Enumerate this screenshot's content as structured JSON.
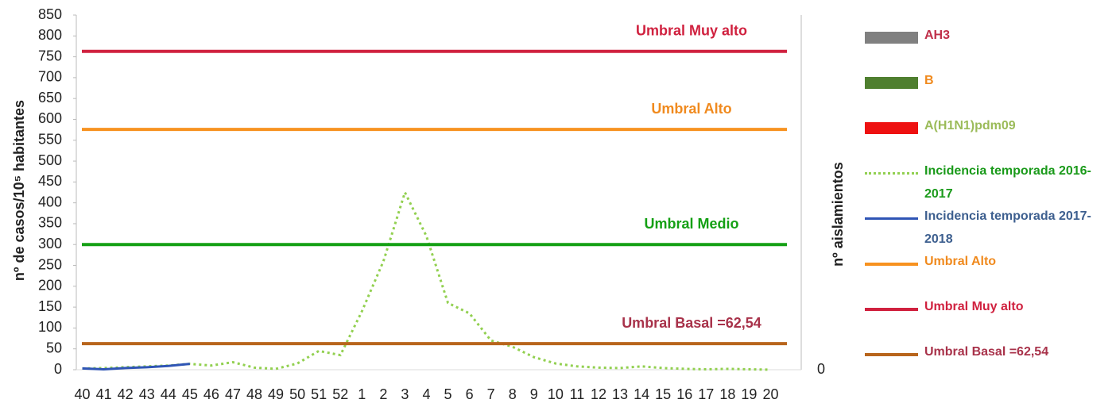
{
  "chart_data": {
    "type": "line",
    "y_label": "nº de casos/10⁵ habitantes",
    "y2_label": "nº aislamientos",
    "categories": [
      40,
      41,
      42,
      43,
      44,
      45,
      46,
      47,
      48,
      49,
      50,
      51,
      52,
      1,
      2,
      3,
      4,
      5,
      6,
      7,
      8,
      9,
      10,
      11,
      12,
      13,
      14,
      15,
      16,
      17,
      18,
      19,
      20
    ],
    "ylim": [
      0,
      850
    ],
    "yticks": [
      0,
      50,
      100,
      150,
      200,
      250,
      300,
      350,
      400,
      450,
      500,
      550,
      600,
      650,
      700,
      750,
      800,
      850
    ],
    "y2ticks": [
      0
    ],
    "series": [
      {
        "name": "AH3",
        "type": "bar",
        "axis": "y2",
        "color": "#808080",
        "label_color": "#c0304a"
      },
      {
        "name": "B",
        "type": "bar",
        "axis": "y2",
        "color": "#4f7f2f",
        "label_color": "#f08a1e"
      },
      {
        "name": "A(H1N1)pdm09",
        "type": "bar",
        "axis": "y2",
        "color": "#ee1111",
        "label_color": "#9bbb59"
      },
      {
        "name": "Incidencia temporada 2016-2017",
        "type": "line",
        "dash": "dotted",
        "color": "#92d050",
        "label_color": "#1a9a1a",
        "values": [
          3,
          4,
          6,
          8,
          10,
          14,
          10,
          18,
          5,
          2,
          15,
          45,
          35,
          140,
          260,
          425,
          320,
          160,
          135,
          70,
          55,
          30,
          15,
          8,
          5,
          4,
          8,
          4,
          2,
          1,
          2,
          1,
          0
        ]
      },
      {
        "name": "Incidencia temporada 2017-2018",
        "type": "line",
        "color": "#2f55b5",
        "label_color": "#3d5f8f",
        "values": [
          3,
          1,
          4,
          6,
          9,
          14,
          null,
          null,
          null,
          null,
          null,
          null,
          null,
          null,
          null,
          null,
          null,
          null,
          null,
          null,
          null,
          null,
          null,
          null,
          null,
          null,
          null,
          null,
          null,
          null,
          null,
          null,
          null
        ]
      },
      {
        "name": "Umbral Alto",
        "type": "hline",
        "value": 576,
        "color": "#f79220",
        "label_color": "#f08a1e",
        "label": "Umbral Alto"
      },
      {
        "name": "Umbral Muy alto",
        "type": "hline",
        "value": 763,
        "color": "#d0213f",
        "label_color": "#d0213f",
        "label": "Umbral Muy alto"
      },
      {
        "name": "Umbral Basal =62,54",
        "type": "hline",
        "value": 62.54,
        "color": "#b8651c",
        "label_color": "#a8324a",
        "label": "Umbral Basal =62,54"
      },
      {
        "type": "hline",
        "value": 300,
        "color": "#14a014",
        "label_color": "#14a014",
        "label": "Umbral Medio",
        "legend": false
      }
    ]
  }
}
